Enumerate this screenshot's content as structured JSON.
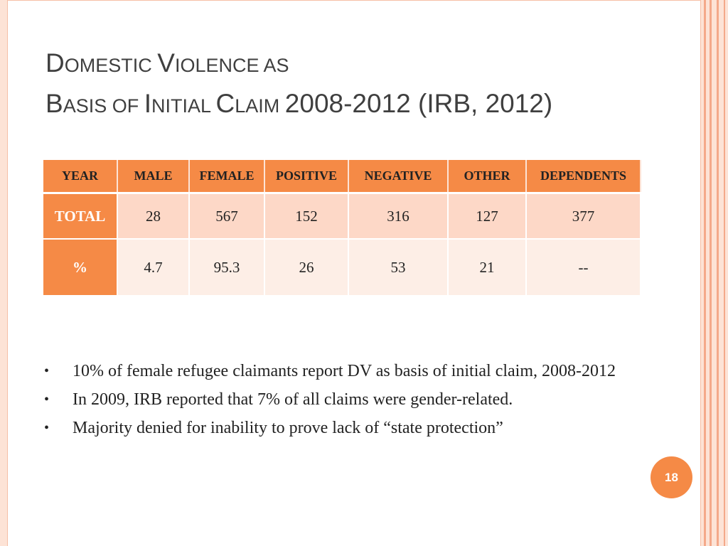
{
  "title": {
    "line1": [
      {
        "text": "D",
        "style": "big"
      },
      {
        "text": "OMESTIC ",
        "style": "sc"
      },
      {
        "text": "V",
        "style": "big"
      },
      {
        "text": "IOLENCE AS",
        "style": "sc"
      }
    ],
    "line2": [
      {
        "text": "B",
        "style": "big"
      },
      {
        "text": "ASIS OF ",
        "style": "sc"
      },
      {
        "text": "I",
        "style": "big"
      },
      {
        "text": "NITIAL ",
        "style": "sc"
      },
      {
        "text": "C",
        "style": "big"
      },
      {
        "text": "LAIM ",
        "style": "sc"
      },
      {
        "text": "2008-2012 (IRB, 2012)",
        "style": "big"
      }
    ]
  },
  "table": {
    "headers": [
      "YEAR",
      "MALE",
      "FEMALE",
      "POSITIVE",
      "NEGATIVE",
      "OTHER",
      "DEPENDENTS"
    ],
    "rows": [
      {
        "label": "TOTAL",
        "cells": [
          "28",
          "567",
          "152",
          "316",
          "127",
          "377"
        ]
      },
      {
        "label": "%",
        "cells": [
          "4.7",
          "95.3",
          "26",
          "53",
          "21",
          "--"
        ]
      }
    ]
  },
  "bullets": [
    "10% of female refugee claimants report DV as basis of initial claim, 2008-2012",
    "In 2009, IRB reported that 7% of all claims were gender-related.",
    "Majority denied for inability to prove lack of “state protection”"
  ],
  "bullet_glyph": "•",
  "page_number": "18",
  "colors": {
    "accent": "#f58a46",
    "row_total_bg": "#fdd8c7",
    "row_pct_bg": "#fdeee6",
    "frame": "#fde3d6"
  }
}
